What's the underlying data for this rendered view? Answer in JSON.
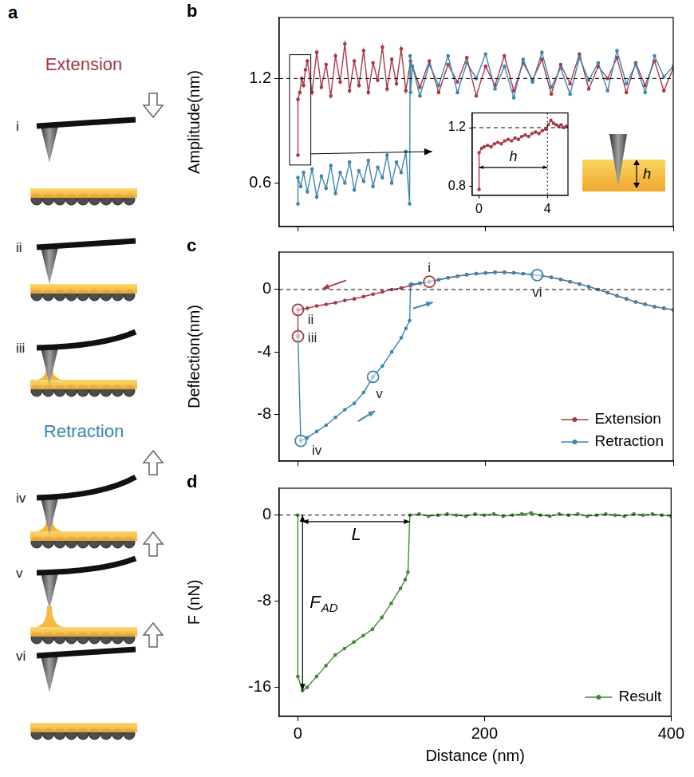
{
  "diagram": {
    "panel": "a",
    "groups": [
      {
        "title": "Extension",
        "color": "#a83a48",
        "steps": [
          "i",
          "ii",
          "iii"
        ]
      },
      {
        "title": "Retraction",
        "color": "#3f86ad",
        "steps": [
          "iv",
          "v",
          "vi"
        ]
      }
    ]
  },
  "chart_data": [
    {
      "panel": "b",
      "type": "line",
      "y_label": "Amplitude(nm)",
      "xlim": [
        -20,
        400
      ],
      "xticks": [
        0,
        200,
        400
      ],
      "ylim": [
        0.35,
        1.55
      ],
      "yticks": [
        0.6,
        1.2
      ],
      "tick_labels": "y",
      "grid": false,
      "marker": "circle",
      "reference_line": 1.2,
      "series": [
        {
          "color": "#a83a48",
          "x": [
            0,
            0,
            2,
            4,
            6,
            8,
            10,
            15,
            20,
            25,
            30,
            35,
            40,
            45,
            50,
            55,
            60,
            65,
            70,
            75,
            80,
            85,
            90,
            95,
            100,
            105,
            110,
            115,
            120,
            130,
            140,
            150,
            160,
            170,
            180,
            190,
            200,
            210,
            220,
            230,
            240,
            250,
            260,
            270,
            280,
            290,
            300,
            310,
            320,
            330,
            340,
            350,
            360,
            370,
            380,
            390,
            400
          ],
          "values": [
            0.76,
            1.08,
            1.12,
            1.2,
            1.16,
            1.25,
            1.3,
            1.12,
            1.35,
            1.15,
            1.28,
            1.1,
            1.33,
            1.18,
            1.4,
            1.13,
            1.3,
            1.16,
            1.36,
            1.12,
            1.29,
            1.19,
            1.38,
            1.14,
            1.31,
            1.17,
            1.37,
            1.13,
            1.3,
            1.15,
            1.3,
            1.12,
            1.28,
            1.18,
            1.32,
            1.1,
            1.27,
            1.16,
            1.33,
            1.13,
            1.29,
            1.19,
            1.31,
            1.11,
            1.28,
            1.17,
            1.34,
            1.14,
            1.27,
            1.2,
            1.32,
            1.12,
            1.29,
            1.16,
            1.3,
            1.13,
            1.26
          ]
        },
        {
          "color": "#3f86ad",
          "x": [
            0,
            0,
            3,
            6,
            10,
            15,
            20,
            25,
            30,
            35,
            40,
            45,
            50,
            55,
            60,
            65,
            70,
            75,
            80,
            85,
            90,
            95,
            100,
            105,
            110,
            115,
            119,
            119.5,
            120,
            122,
            130,
            140,
            150,
            160,
            170,
            180,
            190,
            200,
            210,
            220,
            230,
            240,
            250,
            260,
            270,
            280,
            290,
            300,
            310,
            320,
            330,
            340,
            350,
            360,
            370,
            380,
            390,
            400
          ],
          "values": [
            0.48,
            0.63,
            0.58,
            0.66,
            0.55,
            0.68,
            0.52,
            0.64,
            0.57,
            0.7,
            0.54,
            0.66,
            0.6,
            0.72,
            0.56,
            0.67,
            0.61,
            0.73,
            0.58,
            0.69,
            0.63,
            0.76,
            0.6,
            0.72,
            0.66,
            0.78,
            0.48,
            1.33,
            1.12,
            1.27,
            1.1,
            1.28,
            1.16,
            1.33,
            1.12,
            1.29,
            1.2,
            1.34,
            1.14,
            1.27,
            1.09,
            1.31,
            1.18,
            1.35,
            1.15,
            1.26,
            1.11,
            1.32,
            1.19,
            1.29,
            1.13,
            1.36,
            1.17,
            1.28,
            1.12,
            1.33,
            1.21,
            1.27
          ]
        }
      ],
      "inset": {
        "type": "line",
        "xlim": [
          -0.4,
          5.2
        ],
        "xticks": [
          0,
          4
        ],
        "ylim": [
          0.74,
          1.3
        ],
        "yticks": [
          0.8,
          1.2
        ],
        "grid": false,
        "marker": "circle",
        "reference_line": 1.2,
        "marker_line": 4,
        "series": [
          {
            "color": "#a83a48",
            "x": [
              0,
              0,
              0.15,
              0.3,
              0.5,
              0.7,
              0.9,
              1.1,
              1.3,
              1.5,
              1.7,
              1.9,
              2.1,
              2.3,
              2.5,
              2.7,
              2.9,
              3.1,
              3.3,
              3.5,
              3.7,
              3.9,
              4.05,
              4.2,
              4.35,
              4.5,
              4.65,
              4.8,
              4.95,
              5.1
            ],
            "values": [
              0.78,
              1.03,
              1.06,
              1.07,
              1.08,
              1.07,
              1.09,
              1.1,
              1.09,
              1.11,
              1.12,
              1.11,
              1.13,
              1.12,
              1.14,
              1.15,
              1.14,
              1.16,
              1.17,
              1.16,
              1.18,
              1.19,
              1.22,
              1.25,
              1.23,
              1.22,
              1.21,
              1.22,
              1.2,
              1.21
            ]
          }
        ],
        "annotations": [
          {
            "text": "h",
            "x_from": 0,
            "x_to": 4,
            "y": 0.93
          }
        ]
      },
      "sketch": {
        "label": "h"
      }
    },
    {
      "panel": "c",
      "type": "line",
      "y_label": "Deflection(nm)",
      "xlim": [
        -20,
        400
      ],
      "xticks": [
        0,
        200,
        400
      ],
      "ylim": [
        -11,
        2.4
      ],
      "yticks": [
        -8,
        -4,
        0
      ],
      "tick_labels": "y",
      "grid": false,
      "marker": "circle",
      "reference_line": 0,
      "legend": "lower right",
      "series": [
        {
          "name": "Extension",
          "color": "#a83a48",
          "x": [
            0,
            0,
            5,
            10,
            20,
            30,
            40,
            50,
            60,
            70,
            80,
            90,
            100,
            110,
            120,
            130,
            140,
            150,
            160,
            170,
            180,
            190,
            200,
            210,
            220,
            230,
            240,
            250,
            260,
            270,
            280,
            290,
            300,
            310,
            320,
            330,
            340,
            350,
            360,
            370,
            380,
            390,
            400
          ],
          "values": [
            -3.0,
            -1.3,
            -1.25,
            -1.2,
            -1.05,
            -0.95,
            -0.85,
            -0.7,
            -0.6,
            -0.45,
            -0.3,
            -0.15,
            0.0,
            0.1,
            0.25,
            0.4,
            0.5,
            0.62,
            0.75,
            0.85,
            0.95,
            1.02,
            1.06,
            1.1,
            1.1,
            1.07,
            1.02,
            0.95,
            0.88,
            0.78,
            0.65,
            0.5,
            0.35,
            0.18,
            0.0,
            -0.2,
            -0.4,
            -0.6,
            -0.8,
            -0.95,
            -1.1,
            -1.2,
            -1.3
          ]
        },
        {
          "name": "Retraction",
          "color": "#3f86ad",
          "x": [
            0,
            3,
            10,
            20,
            30,
            40,
            50,
            60,
            70,
            80,
            90,
            100,
            110,
            115,
            119,
            120,
            121,
            130,
            140,
            150,
            160,
            170,
            180,
            190,
            200,
            210,
            220,
            230,
            240,
            250,
            260,
            270,
            280,
            290,
            300,
            310,
            320,
            330,
            340,
            350,
            360,
            370,
            380,
            390,
            400
          ],
          "values": [
            -3.0,
            -9.7,
            -9.5,
            -9.1,
            -8.7,
            -8.2,
            -7.7,
            -7.3,
            -6.6,
            -5.6,
            -4.9,
            -4.0,
            -3.1,
            -2.5,
            -2.0,
            0.3,
            0.35,
            0.4,
            0.5,
            0.62,
            0.75,
            0.85,
            0.95,
            1.02,
            1.06,
            1.1,
            1.1,
            1.07,
            1.02,
            0.95,
            0.88,
            0.78,
            0.65,
            0.5,
            0.35,
            0.18,
            0.0,
            -0.2,
            -0.4,
            -0.6,
            -0.8,
            -0.95,
            -1.1,
            -1.2,
            -1.3
          ]
        }
      ],
      "annotations": [
        {
          "text": "i",
          "x": 140,
          "y": 0.5,
          "series": "Extension"
        },
        {
          "text": "ii",
          "x": 0,
          "y": -1.3,
          "series": "Extension"
        },
        {
          "text": "iii",
          "x": 0,
          "y": -3.0,
          "series": "Extension"
        },
        {
          "text": "iv",
          "x": 3,
          "y": -9.7,
          "series": "Retraction"
        },
        {
          "text": "v",
          "x": 80,
          "y": -5.6,
          "series": "Retraction"
        },
        {
          "text": "vi",
          "x": 255,
          "y": 0.92,
          "series": "Retraction"
        }
      ]
    },
    {
      "panel": "d",
      "type": "line",
      "x_label": "Distance (nm)",
      "y_label": "F (nN)",
      "xlim": [
        -20,
        400
      ],
      "xticks": [
        0,
        200,
        400
      ],
      "ylim": [
        -18.7,
        2.5
      ],
      "yticks": [
        -16,
        -8,
        0
      ],
      "grid": false,
      "marker": "circle",
      "reference_line": 0,
      "legend": "lower right",
      "series": [
        {
          "name": "Result",
          "color": "#3d8b2f",
          "x": [
            0,
            0,
            5,
            10,
            20,
            30,
            40,
            50,
            60,
            70,
            80,
            90,
            100,
            110,
            115,
            118,
            120,
            130,
            140,
            150,
            160,
            170,
            180,
            190,
            200,
            210,
            220,
            230,
            240,
            250,
            260,
            270,
            280,
            290,
            300,
            310,
            320,
            330,
            340,
            350,
            360,
            370,
            380,
            390,
            400
          ],
          "values": [
            0,
            -15.0,
            -16.3,
            -16.0,
            -15.0,
            -14.0,
            -13.0,
            -12.4,
            -11.8,
            -11.2,
            -10.6,
            -9.5,
            -8.2,
            -6.8,
            -6.0,
            -5.3,
            0.0,
            0.1,
            -0.1,
            0.0,
            0.1,
            0.0,
            -0.1,
            0.1,
            0.0,
            0.1,
            -0.1,
            0.0,
            0.1,
            0.2,
            0.0,
            -0.1,
            0.1,
            0.0,
            0.1,
            -0.1,
            0.0,
            0.1,
            0.0,
            -0.1,
            0.1,
            0.0,
            0.1,
            0.0,
            -0.1
          ]
        }
      ],
      "annotations": [
        {
          "text": "L",
          "x_from": 5,
          "x_to": 120,
          "y": -0.6
        },
        {
          "text": "F",
          "subscript": "AD",
          "x": 5,
          "y_from": 0,
          "y_to": -16.3
        }
      ]
    }
  ]
}
